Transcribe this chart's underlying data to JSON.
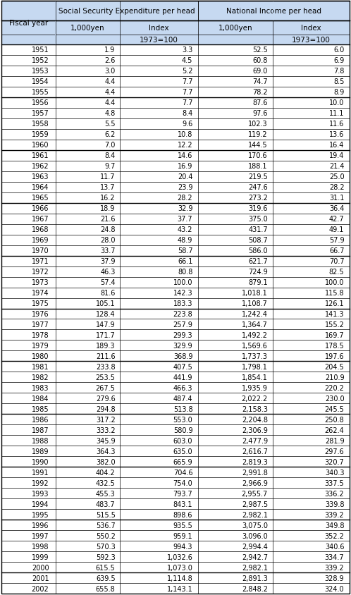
{
  "rows": [
    [
      "1951",
      "1.9",
      "3.3",
      "52.5",
      "6.0"
    ],
    [
      "1952",
      "2.6",
      "4.5",
      "60.8",
      "6.9"
    ],
    [
      "1953",
      "3.0",
      "5.2",
      "69.0",
      "7.8"
    ],
    [
      "1954",
      "4.4",
      "7.7",
      "74.7",
      "8.5"
    ],
    [
      "1955",
      "4.4",
      "7.7",
      "78.2",
      "8.9"
    ],
    [
      "1956",
      "4.4",
      "7.7",
      "87.6",
      "10.0"
    ],
    [
      "1957",
      "4.8",
      "8.4",
      "97.6",
      "11.1"
    ],
    [
      "1958",
      "5.5",
      "9.6",
      "102.3",
      "11.6"
    ],
    [
      "1959",
      "6.2",
      "10.8",
      "119.2",
      "13.6"
    ],
    [
      "1960",
      "7.0",
      "12.2",
      "144.5",
      "16.4"
    ],
    [
      "1961",
      "8.4",
      "14.6",
      "170.6",
      "19.4"
    ],
    [
      "1962",
      "9.7",
      "16.9",
      "188.1",
      "21.4"
    ],
    [
      "1963",
      "11.7",
      "20.4",
      "219.5",
      "25.0"
    ],
    [
      "1964",
      "13.7",
      "23.9",
      "247.6",
      "28.2"
    ],
    [
      "1965",
      "16.2",
      "28.2",
      "273.2",
      "31.1"
    ],
    [
      "1966",
      "18.9",
      "32.9",
      "319.6",
      "36.4"
    ],
    [
      "1967",
      "21.6",
      "37.7",
      "375.0",
      "42.7"
    ],
    [
      "1968",
      "24.8",
      "43.2",
      "431.7",
      "49.1"
    ],
    [
      "1969",
      "28.0",
      "48.9",
      "508.7",
      "57.9"
    ],
    [
      "1970",
      "33.7",
      "58.7",
      "586.0",
      "66.7"
    ],
    [
      "1971",
      "37.9",
      "66.1",
      "621.7",
      "70.7"
    ],
    [
      "1972",
      "46.3",
      "80.8",
      "724.9",
      "82.5"
    ],
    [
      "1973",
      "57.4",
      "100.0",
      "879.1",
      "100.0"
    ],
    [
      "1974",
      "81.6",
      "142.3",
      "1,018.1",
      "115.8"
    ],
    [
      "1975",
      "105.1",
      "183.3",
      "1,108.7",
      "126.1"
    ],
    [
      "1976",
      "128.4",
      "223.8",
      "1,242.4",
      "141.3"
    ],
    [
      "1977",
      "147.9",
      "257.9",
      "1,364.7",
      "155.2"
    ],
    [
      "1978",
      "171.7",
      "299.3",
      "1,492.2",
      "169.7"
    ],
    [
      "1979",
      "189.3",
      "329.9",
      "1,569.6",
      "178.5"
    ],
    [
      "1980",
      "211.6",
      "368.9",
      "1,737.3",
      "197.6"
    ],
    [
      "1981",
      "233.8",
      "407.5",
      "1,798.1",
      "204.5"
    ],
    [
      "1982",
      "253.5",
      "441.9",
      "1,854.1",
      "210.9"
    ],
    [
      "1983",
      "267.5",
      "466.3",
      "1,935.9",
      "220.2"
    ],
    [
      "1984",
      "279.6",
      "487.4",
      "2,022.2",
      "230.0"
    ],
    [
      "1985",
      "294.8",
      "513.8",
      "2,158.3",
      "245.5"
    ],
    [
      "1986",
      "317.2",
      "553.0",
      "2,204.8",
      "250.8"
    ],
    [
      "1987",
      "333.2",
      "580.9",
      "2,306.9",
      "262.4"
    ],
    [
      "1988",
      "345.9",
      "603.0",
      "2,477.9",
      "281.9"
    ],
    [
      "1989",
      "364.3",
      "635.0",
      "2,616.7",
      "297.6"
    ],
    [
      "1990",
      "382.0",
      "665.9",
      "2,819.3",
      "320.7"
    ],
    [
      "1991",
      "404.2",
      "704.6",
      "2,991.8",
      "340.3"
    ],
    [
      "1992",
      "432.5",
      "754.0",
      "2,966.9",
      "337.5"
    ],
    [
      "1993",
      "455.3",
      "793.7",
      "2,955.7",
      "336.2"
    ],
    [
      "1994",
      "483.7",
      "843.1",
      "2,987.5",
      "339.8"
    ],
    [
      "1995",
      "515.5",
      "898.6",
      "2,982.1",
      "339.2"
    ],
    [
      "1996",
      "536.7",
      "935.5",
      "3,075.0",
      "349.8"
    ],
    [
      "1997",
      "550.2",
      "959.1",
      "3,096.0",
      "352.2"
    ],
    [
      "1998",
      "570.3",
      "994.3",
      "2,994.4",
      "340.6"
    ],
    [
      "1999",
      "592.3",
      "1,032.6",
      "2,942.7",
      "334.7"
    ],
    [
      "2000",
      "615.5",
      "1,073.0",
      "2,982.1",
      "339.2"
    ],
    [
      "2001",
      "639.5",
      "1,114.8",
      "2,891.3",
      "328.9"
    ],
    [
      "2002",
      "655.8",
      "1,143.1",
      "2,848.2",
      "324.0"
    ]
  ],
  "decade_separators": [
    "1955",
    "1960",
    "1965",
    "1970",
    "1975",
    "1980",
    "1985",
    "1990",
    "1995",
    "2000"
  ],
  "header_bg": "#c6d9f1",
  "fig_width": 4.98,
  "fig_height": 8.45,
  "dpi": 100
}
